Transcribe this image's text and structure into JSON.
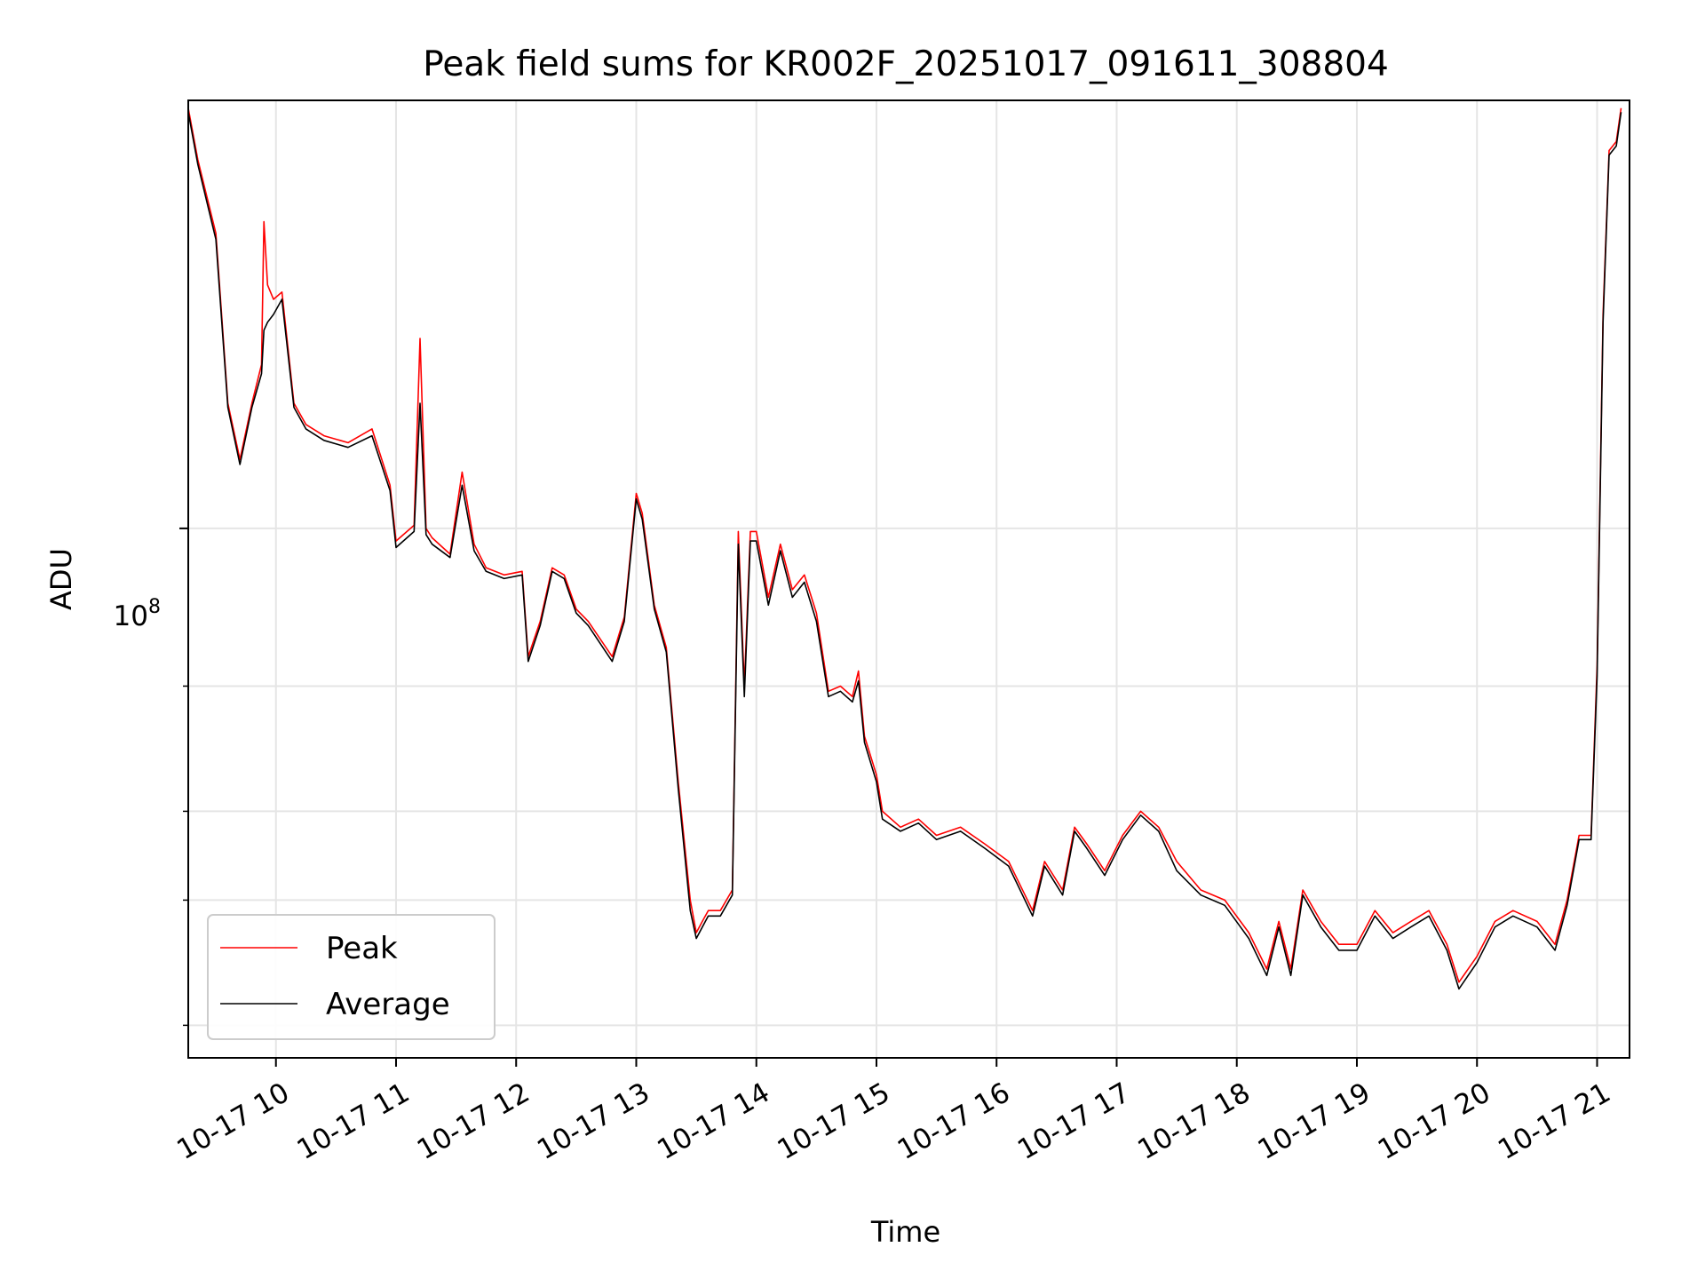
{
  "chart_data": {
    "type": "line",
    "title": "Peak field sums for KR002F_20251017_091611_308804",
    "xlabel": "Time",
    "ylabel": "ADU",
    "y_scale": "log",
    "y_tick_major": "10^8",
    "y_major_tick": {
      "base": "10",
      "exp": "8",
      "value": 100000000
    },
    "y_minor_ticks": [
      20000000,
      30000000,
      40000000,
      60000000
    ],
    "xlim": [
      "2025-10-17 09:16",
      "2025-10-17 21:16"
    ],
    "ylim": [
      18000000,
      400000000
    ],
    "x_ticks": [
      "10-17 10",
      "10-17 11",
      "10-17 12",
      "10-17 13",
      "10-17 14",
      "10-17 15",
      "10-17 16",
      "10-17 17",
      "10-17 18",
      "10-17 19",
      "10-17 20",
      "10-17 21"
    ],
    "x_tick_hours": [
      10,
      11,
      12,
      13,
      14,
      15,
      16,
      17,
      18,
      19,
      20,
      21
    ],
    "grid": true,
    "legend_position": "lower-left",
    "series": [
      {
        "name": "Peak",
        "color": "#ff0000",
        "x_hours": [
          9.27,
          9.35,
          9.5,
          9.6,
          9.7,
          9.8,
          9.88,
          9.9,
          9.93,
          9.98,
          10.05,
          10.15,
          10.25,
          10.4,
          10.6,
          10.8,
          10.95,
          11.0,
          11.15,
          11.2,
          11.25,
          11.3,
          11.45,
          11.55,
          11.65,
          11.75,
          11.9,
          12.05,
          12.1,
          12.2,
          12.3,
          12.4,
          12.5,
          12.6,
          12.8,
          12.9,
          13.0,
          13.05,
          13.15,
          13.25,
          13.35,
          13.45,
          13.5,
          13.55,
          13.6,
          13.7,
          13.8,
          13.85,
          13.9,
          13.95,
          14.0,
          14.1,
          14.2,
          14.3,
          14.4,
          14.5,
          14.6,
          14.7,
          14.8,
          14.85,
          14.9,
          15.0,
          15.05,
          15.2,
          15.35,
          15.5,
          15.7,
          15.9,
          16.1,
          16.3,
          16.4,
          16.55,
          16.65,
          16.75,
          16.9,
          17.05,
          17.2,
          17.35,
          17.5,
          17.7,
          17.9,
          18.1,
          18.25,
          18.35,
          18.45,
          18.55,
          18.7,
          18.85,
          19.0,
          19.15,
          19.3,
          19.45,
          19.6,
          19.75,
          19.85,
          20.0,
          20.15,
          20.3,
          20.5,
          20.65,
          20.75,
          20.85,
          20.95,
          21.0,
          21.05,
          21.1,
          21.16,
          21.2
        ],
        "values": [
          390000000,
          330000000,
          260000000,
          150000000,
          125000000,
          150000000,
          170000000,
          270000000,
          220000000,
          210000000,
          215000000,
          150000000,
          140000000,
          135000000,
          132000000,
          138000000,
          115000000,
          96000000,
          101000000,
          185000000,
          100000000,
          97000000,
          92000000,
          120000000,
          95000000,
          88000000,
          86000000,
          87000000,
          66000000,
          74000000,
          88000000,
          86000000,
          77000000,
          74000000,
          66000000,
          75000000,
          112000000,
          105000000,
          78000000,
          68000000,
          44000000,
          30000000,
          27000000,
          28000000,
          29000000,
          29000000,
          31000000,
          99000000,
          60000000,
          99000000,
          99000000,
          80000000,
          95000000,
          82000000,
          86000000,
          76000000,
          59000000,
          60000000,
          58000000,
          63000000,
          51000000,
          45000000,
          40000000,
          38000000,
          39000000,
          37000000,
          38000000,
          36000000,
          34000000,
          29000000,
          34000000,
          31000000,
          38000000,
          36000000,
          33000000,
          37000000,
          40000000,
          38000000,
          34000000,
          31000000,
          30000000,
          27000000,
          24000000,
          28000000,
          24000000,
          31000000,
          28000000,
          26000000,
          26000000,
          29000000,
          27000000,
          28000000,
          29000000,
          26000000,
          23000000,
          25000000,
          28000000,
          29000000,
          28000000,
          26000000,
          30000000,
          37000000,
          37000000,
          64000000,
          200000000,
          340000000,
          350000000,
          390000000
        ]
      },
      {
        "name": "Average",
        "color": "#000000",
        "x_hours": [
          9.27,
          9.35,
          9.5,
          9.6,
          9.7,
          9.8,
          9.88,
          9.9,
          9.93,
          9.98,
          10.05,
          10.15,
          10.25,
          10.4,
          10.6,
          10.8,
          10.95,
          11.0,
          11.15,
          11.2,
          11.25,
          11.3,
          11.45,
          11.55,
          11.65,
          11.75,
          11.9,
          12.05,
          12.1,
          12.2,
          12.3,
          12.4,
          12.5,
          12.6,
          12.8,
          12.9,
          13.0,
          13.05,
          13.15,
          13.25,
          13.35,
          13.45,
          13.5,
          13.55,
          13.6,
          13.7,
          13.8,
          13.85,
          13.9,
          13.95,
          14.0,
          14.1,
          14.2,
          14.3,
          14.4,
          14.5,
          14.6,
          14.7,
          14.8,
          14.85,
          14.9,
          15.0,
          15.05,
          15.2,
          15.35,
          15.5,
          15.7,
          15.9,
          16.1,
          16.3,
          16.4,
          16.55,
          16.65,
          16.75,
          16.9,
          17.05,
          17.2,
          17.35,
          17.5,
          17.7,
          17.9,
          18.1,
          18.25,
          18.35,
          18.45,
          18.55,
          18.7,
          18.85,
          19.0,
          19.15,
          19.3,
          19.45,
          19.6,
          19.75,
          19.85,
          20.0,
          20.15,
          20.3,
          20.5,
          20.65,
          20.75,
          20.85,
          20.95,
          21.0,
          21.05,
          21.1,
          21.16,
          21.2
        ],
        "values": [
          385000000,
          325000000,
          255000000,
          148000000,
          123000000,
          148000000,
          165000000,
          190000000,
          195000000,
          200000000,
          210000000,
          148000000,
          138000000,
          133000000,
          130000000,
          135000000,
          113000000,
          94000000,
          99000000,
          150000000,
          98000000,
          95000000,
          91000000,
          115000000,
          93000000,
          87000000,
          85000000,
          86000000,
          65000000,
          73000000,
          87000000,
          85000000,
          76000000,
          73000000,
          65000000,
          74000000,
          110000000,
          103000000,
          77000000,
          67000000,
          43000000,
          29000000,
          26500000,
          27500000,
          28500000,
          28500000,
          30500000,
          95000000,
          58000000,
          96000000,
          96000000,
          78000000,
          93000000,
          80000000,
          84000000,
          74000000,
          58000000,
          59000000,
          57000000,
          61000000,
          50000000,
          44000000,
          39000000,
          37500000,
          38500000,
          36500000,
          37500000,
          35500000,
          33500000,
          28500000,
          33500000,
          30500000,
          37500000,
          35500000,
          32500000,
          36500000,
          39500000,
          37500000,
          33000000,
          30500000,
          29500000,
          26500000,
          23500000,
          27500000,
          23500000,
          30500000,
          27500000,
          25500000,
          25500000,
          28500000,
          26500000,
          27500000,
          28500000,
          25500000,
          22500000,
          24500000,
          27500000,
          28500000,
          27500000,
          25500000,
          29500000,
          36500000,
          36500000,
          62000000,
          195000000,
          335000000,
          345000000,
          385000000
        ]
      }
    ]
  }
}
